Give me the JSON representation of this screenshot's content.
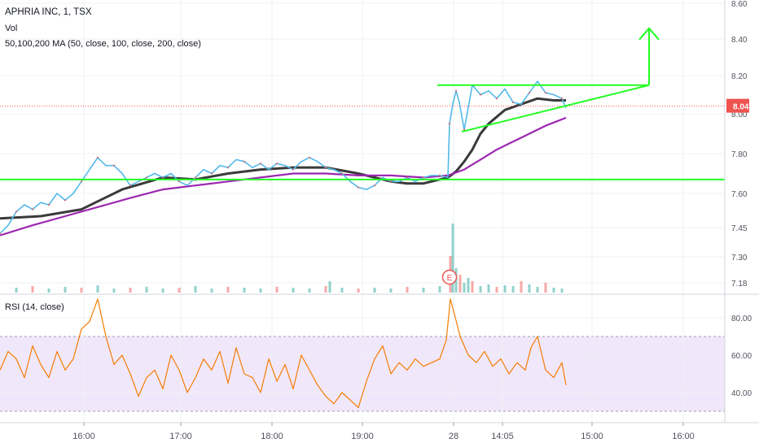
{
  "header": {
    "title": "APHRIA INC, 1, TSX",
    "volume_label": "Vol",
    "ma_label": "50,100,200 MA (50, close, 100, close, 200, close)",
    "rsi_label": "RSI (14, close)"
  },
  "colors": {
    "price": "#53b9ea",
    "candle_up": "#26a69a",
    "candle_down": "#ef5350",
    "ma_fast": "#3a3a3a",
    "ma_slow": "#9c27b0",
    "trendline": "#22ff22",
    "last_price": "#ef5350",
    "rsi": "#f57c00",
    "rsi_band": "#f1e7fb",
    "earnings": "#ef5350"
  },
  "chart_data": [
    {
      "type": "candlestick",
      "title": "APHRIA INC, 1, TSX",
      "x_ticks": [
        "16:00",
        "17:00",
        "18:00",
        "19:00",
        "28",
        "14:05",
        "15:00",
        "16:00"
      ],
      "y_ticks": [
        8.6,
        8.4,
        8.2,
        8.0,
        7.8,
        7.6,
        7.45,
        7.3,
        7.18
      ],
      "ylim": [
        7.15,
        8.61
      ],
      "last_price": 8.04,
      "last_price_label": "8.04",
      "earnings_marker": {
        "x": "28",
        "label": "E"
      },
      "price_series": {
        "name": "APHRIA INC",
        "x": [
          0,
          10,
          20,
          30,
          40,
          50,
          60,
          70,
          80,
          90,
          100,
          110,
          120,
          130,
          140,
          150,
          160,
          170,
          180,
          190,
          200,
          210,
          220,
          230,
          240,
          250,
          260,
          270,
          280,
          290,
          300,
          310,
          320,
          330,
          340,
          350,
          360,
          370,
          380,
          390,
          400,
          410,
          420,
          430,
          440,
          450,
          460,
          470,
          480,
          490,
          500,
          510,
          520,
          530,
          540,
          550,
          552,
          556,
          560,
          564,
          570,
          580,
          590,
          600,
          610,
          620,
          630,
          640,
          650,
          660,
          670,
          680,
          690,
          695
        ],
        "values": [
          7.42,
          7.46,
          7.52,
          7.55,
          7.53,
          7.56,
          7.55,
          7.6,
          7.57,
          7.6,
          7.66,
          7.72,
          7.78,
          7.74,
          7.74,
          7.7,
          7.64,
          7.66,
          7.68,
          7.7,
          7.68,
          7.7,
          7.66,
          7.64,
          7.68,
          7.72,
          7.7,
          7.74,
          7.73,
          7.77,
          7.76,
          7.73,
          7.75,
          7.72,
          7.75,
          7.74,
          7.72,
          7.76,
          7.78,
          7.76,
          7.73,
          7.72,
          7.7,
          7.66,
          7.63,
          7.62,
          7.64,
          7.68,
          7.66,
          7.66,
          7.68,
          7.66,
          7.68,
          7.69,
          7.69,
          7.68,
          7.95,
          8.05,
          8.12,
          8.06,
          7.92,
          8.15,
          8.1,
          8.12,
          8.08,
          8.13,
          8.06,
          8.05,
          8.11,
          8.17,
          8.11,
          8.1,
          8.08,
          8.03
        ]
      },
      "ma_series": [
        {
          "name": "MA 50",
          "x": [
            0,
            50,
            100,
            150,
            200,
            240,
            280,
            320,
            360,
            400,
            440,
            480,
            500,
            520,
            540,
            550,
            560,
            570,
            580,
            590,
            600,
            620,
            640,
            660,
            680,
            695
          ],
          "values": [
            7.49,
            7.5,
            7.53,
            7.62,
            7.68,
            7.67,
            7.7,
            7.72,
            7.73,
            7.73,
            7.7,
            7.66,
            7.65,
            7.65,
            7.67,
            7.68,
            7.71,
            7.76,
            7.82,
            7.9,
            7.95,
            8.02,
            8.05,
            8.08,
            8.07,
            8.07
          ]
        },
        {
          "name": "MA 100",
          "x": [
            0,
            40,
            80,
            120,
            160,
            200,
            240,
            280,
            320,
            360,
            400,
            440,
            480,
            520,
            550,
            570,
            590,
            610,
            630,
            650,
            670,
            695
          ],
          "values": [
            7.41,
            7.46,
            7.5,
            7.54,
            7.58,
            7.62,
            7.64,
            7.66,
            7.68,
            7.7,
            7.7,
            7.69,
            7.69,
            7.68,
            7.69,
            7.72,
            7.77,
            7.82,
            7.86,
            7.9,
            7.94,
            7.98
          ]
        }
      ],
      "annotations": [
        {
          "type": "horizontal-line",
          "price": 7.67
        },
        {
          "type": "horizontal-segment",
          "price": 8.15,
          "x": [
            537,
            797
          ]
        },
        {
          "type": "trendline",
          "from": [
            567,
            7.91
          ],
          "to": [
            797,
            8.15
          ]
        },
        {
          "type": "arrow-up",
          "x": 797,
          "from_price": 8.15,
          "to_price": 8.46
        }
      ]
    },
    {
      "type": "bar",
      "title": "Vol",
      "x": [
        20,
        40,
        60,
        80,
        100,
        120,
        140,
        160,
        180,
        200,
        220,
        240,
        260,
        280,
        300,
        320,
        340,
        360,
        380,
        400,
        405,
        420,
        440,
        460,
        480,
        500,
        520,
        540,
        553,
        556,
        560,
        565,
        570,
        575,
        580,
        590,
        600,
        610,
        620,
        630,
        640,
        650,
        660,
        670,
        680,
        690
      ],
      "values": [
        6,
        8,
        5,
        7,
        6,
        9,
        5,
        6,
        7,
        5,
        6,
        8,
        5,
        7,
        6,
        5,
        7,
        6,
        5,
        8,
        14,
        6,
        5,
        6,
        5,
        7,
        6,
        8,
        45,
        85,
        30,
        22,
        12,
        18,
        14,
        8,
        10,
        7,
        9,
        8,
        14,
        10,
        7,
        12,
        6,
        5
      ]
    },
    {
      "type": "line",
      "title": "RSI (14, close)",
      "y_ticks": [
        80.0,
        60.0,
        40.0
      ],
      "ylim": [
        27,
        91
      ],
      "bands": [
        30,
        70
      ],
      "x": [
        0,
        10,
        20,
        30,
        40,
        50,
        60,
        70,
        80,
        90,
        100,
        110,
        120,
        125,
        130,
        140,
        150,
        160,
        170,
        180,
        190,
        200,
        210,
        220,
        230,
        240,
        250,
        260,
        270,
        280,
        290,
        300,
        310,
        320,
        330,
        340,
        350,
        360,
        370,
        380,
        390,
        400,
        410,
        420,
        430,
        440,
        450,
        460,
        470,
        480,
        490,
        500,
        510,
        520,
        530,
        540,
        548,
        553,
        558,
        565,
        575,
        585,
        595,
        605,
        615,
        625,
        635,
        645,
        652,
        660,
        670,
        680,
        690,
        695
      ],
      "values": [
        52,
        62,
        58,
        48,
        65,
        55,
        48,
        62,
        52,
        58,
        74,
        78,
        90,
        80,
        70,
        55,
        60,
        50,
        38,
        48,
        52,
        42,
        60,
        52,
        40,
        48,
        58,
        52,
        62,
        45,
        64,
        50,
        48,
        40,
        58,
        46,
        55,
        42,
        60,
        52,
        44,
        38,
        34,
        40,
        36,
        32,
        46,
        58,
        65,
        50,
        56,
        52,
        58,
        54,
        56,
        58,
        68,
        90,
        82,
        70,
        60,
        56,
        62,
        54,
        58,
        50,
        56,
        52,
        64,
        70,
        52,
        48,
        56,
        44
      ]
    }
  ]
}
